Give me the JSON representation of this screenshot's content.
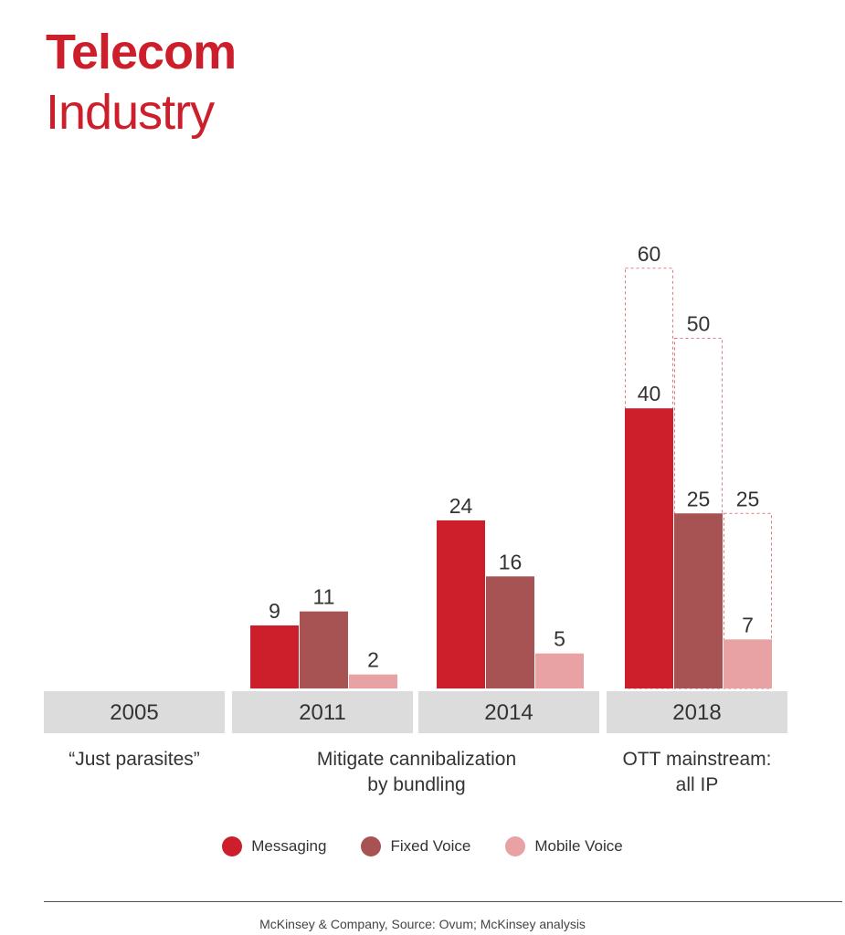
{
  "title_line1": "Telecom",
  "title_line2": "Industry",
  "source": "McKinsey & Company, Source: Ovum; McKinsey analysis",
  "colors": {
    "title": "#cc1f2b",
    "messaging": "#cc1f2b",
    "fixed_voice": "#a85353",
    "mobile_voice": "#e8a2a4",
    "axis_box": "#dcdcdc",
    "projection_outline": "#e07a80"
  },
  "legend": [
    {
      "label": "Messaging",
      "color": "#cc1f2b"
    },
    {
      "label": "Fixed Voice",
      "color": "#a85353"
    },
    {
      "label": "Mobile Voice",
      "color": "#e8a2a4"
    }
  ],
  "chart_data": {
    "type": "bar",
    "categories": [
      "2005",
      "2011",
      "2014",
      "2018"
    ],
    "category_captions": [
      [
        "“Just parasites”"
      ],
      [
        "Mitigate cannibalization",
        "by bundling"
      ],
      [
        "Mitigate cannibalization",
        "by bundling"
      ],
      [
        "OTT mainstream:",
        "all IP"
      ]
    ],
    "series": [
      {
        "name": "Messaging",
        "values": [
          null,
          9,
          24,
          40
        ]
      },
      {
        "name": "Fixed Voice",
        "values": [
          null,
          11,
          16,
          25
        ]
      },
      {
        "name": "Mobile Voice",
        "values": [
          null,
          2,
          5,
          7
        ]
      }
    ],
    "projections_2018": {
      "Messaging": 60,
      "Fixed Voice": 50,
      "Mobile Voice": 25
    },
    "ylim": [
      0,
      60
    ],
    "grid": false
  }
}
